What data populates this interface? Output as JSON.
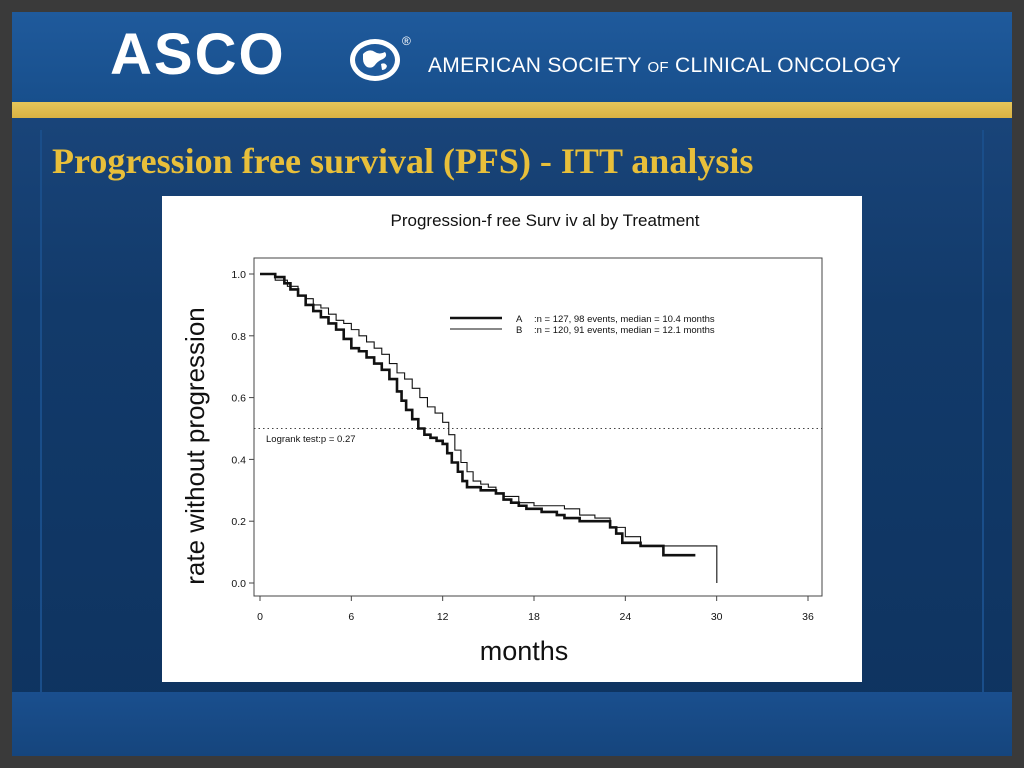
{
  "header": {
    "logo_text": "ASCO",
    "logo_mark": "globe-icon",
    "registered": "®",
    "org_name_1": "AMERICAN SOCIETY",
    "org_name_of": "OF",
    "org_name_2": "CLINICAL ONCOLOGY"
  },
  "slide_title": "Progression free survival (PFS) - ITT analysis",
  "colors": {
    "title": "#e8bf3a",
    "header_bg": "#1f5a9c",
    "gold_rule": "#e6c65a",
    "slide_bg": "#123a6a"
  },
  "chart_data": {
    "type": "line",
    "step": true,
    "title": "Progression-f ree Surv iv al by  Treatment",
    "xlabel": "months",
    "ylabel": "rate without progression",
    "xlim": [
      0,
      36
    ],
    "ylim": [
      0,
      1
    ],
    "x_ticks": [
      "0",
      "6",
      "12",
      "18",
      "24",
      "30",
      "36"
    ],
    "y_ticks": [
      "0.0",
      "0.2",
      "0.4",
      "0.6",
      "0.8",
      "1.0"
    ],
    "reference_line_y": 0.5,
    "annotation": "Logrank test:p = 0.27",
    "series": [
      {
        "name": "A",
        "legend": ":n = 127, 98 events, median = 10.4 months",
        "style": "thick",
        "x": [
          0,
          1,
          1.6,
          2,
          2.5,
          3,
          3.5,
          4,
          4.5,
          5,
          5.5,
          6,
          6.5,
          7,
          7.5,
          8,
          8.5,
          9,
          9.3,
          9.6,
          10,
          10.4,
          10.8,
          11.2,
          11.6,
          12,
          12.3,
          12.6,
          13,
          13.3,
          13.6,
          14,
          14.5,
          15,
          15.5,
          16,
          16.5,
          17,
          17.5,
          18,
          18.5,
          19,
          19.5,
          20,
          21,
          22,
          23,
          23.4,
          23.8,
          25,
          26,
          26.5,
          27,
          28,
          28.6
        ],
        "y": [
          1.0,
          0.99,
          0.97,
          0.95,
          0.93,
          0.9,
          0.88,
          0.86,
          0.84,
          0.82,
          0.79,
          0.76,
          0.75,
          0.73,
          0.71,
          0.69,
          0.66,
          0.62,
          0.59,
          0.56,
          0.53,
          0.5,
          0.48,
          0.47,
          0.46,
          0.45,
          0.42,
          0.39,
          0.36,
          0.33,
          0.31,
          0.31,
          0.3,
          0.3,
          0.29,
          0.27,
          0.26,
          0.25,
          0.24,
          0.24,
          0.23,
          0.23,
          0.22,
          0.21,
          0.2,
          0.2,
          0.18,
          0.16,
          0.13,
          0.12,
          0.12,
          0.09,
          0.09,
          0.09,
          0.09
        ]
      },
      {
        "name": "B",
        "legend": ":n = 120, 91 events, median = 12.1 months",
        "style": "thin",
        "x": [
          0,
          1,
          1.8,
          2.5,
          3,
          3.5,
          4,
          4.5,
          5,
          5.5,
          6,
          6.5,
          7,
          7.5,
          8,
          8.5,
          9,
          9.5,
          10,
          10.5,
          11,
          11.5,
          12,
          12.4,
          12.8,
          13.2,
          13.6,
          14,
          14.5,
          15,
          15.5,
          16,
          17,
          18,
          19,
          20,
          21,
          22,
          23,
          24,
          25,
          26,
          27,
          28,
          29,
          30,
          30.01
        ],
        "y": [
          1.0,
          0.98,
          0.96,
          0.93,
          0.92,
          0.9,
          0.89,
          0.87,
          0.85,
          0.84,
          0.82,
          0.8,
          0.78,
          0.76,
          0.74,
          0.71,
          0.68,
          0.66,
          0.63,
          0.6,
          0.57,
          0.55,
          0.52,
          0.48,
          0.43,
          0.39,
          0.36,
          0.33,
          0.32,
          0.31,
          0.29,
          0.28,
          0.26,
          0.25,
          0.25,
          0.24,
          0.22,
          0.21,
          0.18,
          0.15,
          0.12,
          0.12,
          0.12,
          0.12,
          0.12,
          0.12,
          0.0
        ]
      }
    ]
  }
}
